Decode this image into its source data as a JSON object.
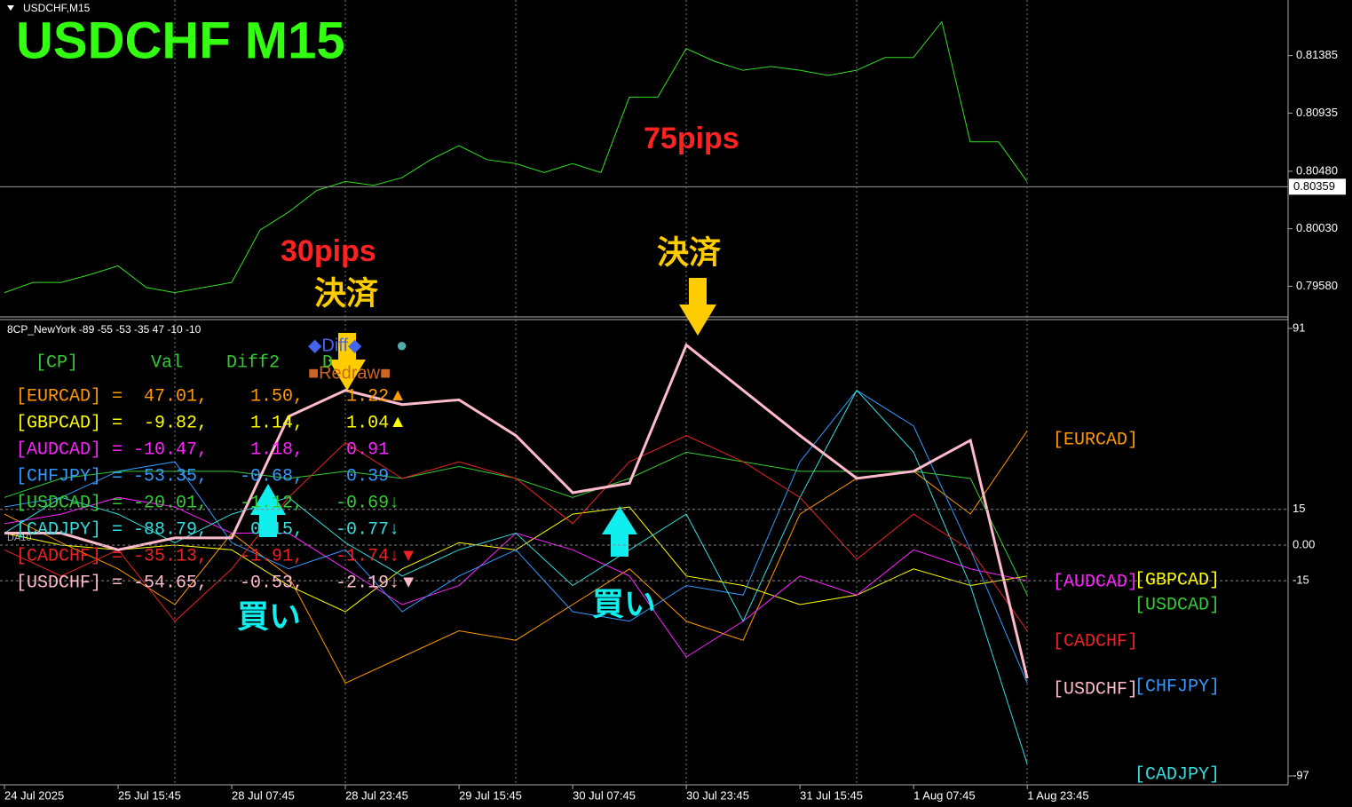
{
  "window_title": "USDCHF,M15",
  "symbol_title": "USDCHF  M15",
  "xticks": [
    {
      "value": 0,
      "label": "24 Jul 2025"
    },
    {
      "value": 2,
      "label": "25 Jul 15:45"
    },
    {
      "value": 4,
      "label": "28 Jul 07:45"
    },
    {
      "value": 6,
      "label": "28 Jul 23:45"
    },
    {
      "value": 8,
      "label": "29 Jul 15:45"
    },
    {
      "value": 10,
      "label": "30 Jul 07:45"
    },
    {
      "value": 12,
      "label": "30 Jul 23:45"
    },
    {
      "value": 14,
      "label": "31 Jul 15:45"
    },
    {
      "value": 16,
      "label": "1 Aug 07:45"
    },
    {
      "value": 18,
      "label": "1 Aug 23:45"
    }
  ],
  "price_panel": {
    "color": "#33dd22",
    "ylim": [
      0.7934,
      0.8182
    ],
    "xlim": [
      0,
      45.19
    ],
    "yticks": [
      0.81385,
      {
        "value": 0.80935,
        "label": "0.80935"
      },
      {
        "value": 0.8048,
        "label": "0.80480"
      },
      {
        "value": 0.8003,
        "label": "0.80030"
      },
      {
        "value": 0.7958,
        "label": "0.79580"
      }
    ],
    "current_price": 0.80359,
    "x": [
      0,
      1,
      2,
      3,
      4,
      5,
      6,
      7,
      8,
      9,
      10,
      11,
      12,
      13,
      14,
      15,
      16,
      17,
      18,
      19,
      20,
      21,
      22,
      23,
      24,
      25,
      26,
      27,
      28,
      29,
      30,
      31,
      32,
      33,
      34,
      35,
      36
    ],
    "values": [
      0.7953,
      0.7961,
      0.7961,
      0.7967,
      0.7974,
      0.7957,
      0.7953,
      0.7957,
      0.7961,
      0.8002,
      0.8016,
      0.8033,
      0.804,
      0.8037,
      0.8043,
      0.8057,
      0.8068,
      0.8057,
      0.8054,
      0.8047,
      0.8054,
      0.8047,
      0.8106,
      0.8106,
      0.8144,
      0.8134,
      0.8127,
      0.813,
      0.8127,
      0.8123,
      0.8127,
      0.8137,
      0.8137,
      0.8165,
      0.8071,
      0.8071,
      0.804
    ]
  },
  "indicator_panel": {
    "header": "8CP_NewYork -89 -55 -53 -35 47 -10 -10",
    "side_label": "DA10",
    "ylim": [
      -100.7,
      94.7
    ],
    "xlim": [
      0,
      22.59
    ],
    "yticks": [
      91,
      15,
      {
        "value": 0,
        "label": "0.00"
      },
      -15,
      -97
    ],
    "x": [
      0,
      1,
      2,
      3,
      4,
      5,
      6,
      7,
      8,
      9,
      10,
      11,
      12,
      13,
      14,
      15,
      16,
      17,
      18
    ],
    "table_header": [
      "[CP]",
      "Val",
      "Diff2",
      "D"
    ],
    "buttons": {
      "diff": "◆Diff◆",
      "dot": "●",
      "redraw": "■Redraw■"
    },
    "rows": [
      {
        "text": "[EURCAD] =  47.01,    1.50,    1.22",
        "flag": "▲"
      },
      {
        "text": "[GBPCAD] =  -9.82,    1.14,    1.04",
        "flag": "▲"
      },
      {
        "text": "[AUDCAD] = -10.47,    1.18,    0.91"
      },
      {
        "text": "[CHFJPY] = -53.35,   -0.68,    0.39"
      },
      {
        "text": "[USDCAD] = -20.01,   -1.12,   -0.69↓"
      },
      {
        "text": "[CADJPY] = -88.79,    0.15,   -0.77↓"
      },
      {
        "text": "[CADCHF] = -35.13,   -1.91,   -1.74↓",
        "flag": "▼"
      },
      {
        "text": "[USDCHF] = -54.65,   -0.53,   -2.19↓",
        "flag": "▼"
      }
    ],
    "series": [
      {
        "name": "[EURCAD]",
        "color": "#ff9900",
        "values": [
          13,
          1,
          -10,
          -25,
          5,
          -13,
          -58,
          -47,
          -36,
          -40,
          -25,
          -10,
          -32,
          -40,
          13,
          28,
          31,
          13,
          48
        ]
      },
      {
        "name": "[GBPCAD]",
        "color": "#ffff00",
        "values": [
          5,
          0,
          -2,
          0,
          -2,
          -17,
          -28,
          -10,
          1,
          -2,
          13,
          16,
          -13,
          -17,
          -25,
          -21,
          -10,
          -17,
          -13
        ]
      },
      {
        "name": "[AUDCAD]",
        "color": "#ff22ff",
        "values": [
          9,
          13,
          20,
          16,
          5,
          5,
          -10,
          -25,
          -17,
          5,
          -2,
          -13,
          -47,
          -32,
          -13,
          -21,
          -2,
          -10,
          -15
        ]
      },
      {
        "name": "[CHFJPY]",
        "color": "#3399ff",
        "values": [
          16,
          20,
          31,
          35,
          1,
          -10,
          -2,
          -28,
          -13,
          -2,
          -28,
          -32,
          -17,
          -21,
          35,
          65,
          50,
          -2,
          -58
        ]
      },
      {
        "name": "[USDCAD]",
        "color": "#33cc33",
        "values": [
          20,
          28,
          31,
          31,
          31,
          28,
          31,
          28,
          33,
          28,
          20,
          28,
          39,
          35,
          31,
          31,
          31,
          28,
          -21
        ]
      },
      {
        "name": "[CADJPY]",
        "color": "#33dddd",
        "values": [
          5,
          20,
          13,
          1,
          13,
          20,
          1,
          -13,
          -2,
          5,
          -17,
          -2,
          13,
          -32,
          20,
          65,
          39,
          -17,
          -92
        ]
      },
      {
        "name": "[CADCHF]",
        "color": "#ee2222",
        "values": [
          -2,
          -13,
          -2,
          -32,
          -10,
          20,
          43,
          28,
          35,
          28,
          9,
          35,
          46,
          35,
          20,
          -6,
          13,
          -2,
          -36
        ]
      },
      {
        "name": "[USDCHF]",
        "color": "#ffbbcc",
        "values": [
          5,
          5,
          -2,
          3,
          3,
          54,
          65,
          59,
          61,
          46,
          22,
          26,
          84,
          65,
          46,
          28,
          31,
          44,
          -56
        ]
      }
    ]
  },
  "annotations": {
    "pips1": "30pips",
    "pips2": "75pips",
    "close1": "決済",
    "close2": "決済",
    "buy1": "買い",
    "buy2": "買い"
  }
}
